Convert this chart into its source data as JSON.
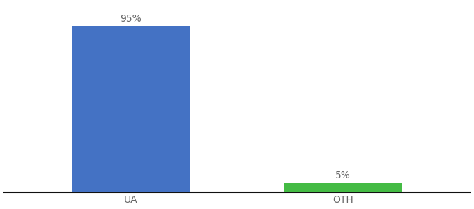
{
  "categories": [
    "UA",
    "OTH"
  ],
  "values": [
    95,
    5
  ],
  "bar_colors": [
    "#4472c4",
    "#44bb44"
  ],
  "bar_labels": [
    "95%",
    "5%"
  ],
  "background_color": "#ffffff",
  "axis_line_color": "#111111",
  "label_color": "#666666",
  "label_fontsize": 10,
  "tick_fontsize": 10,
  "ylim": [
    0,
    108
  ],
  "bar_width": 0.55,
  "x_positions": [
    0,
    1
  ],
  "xlim": [
    -0.6,
    1.6
  ]
}
